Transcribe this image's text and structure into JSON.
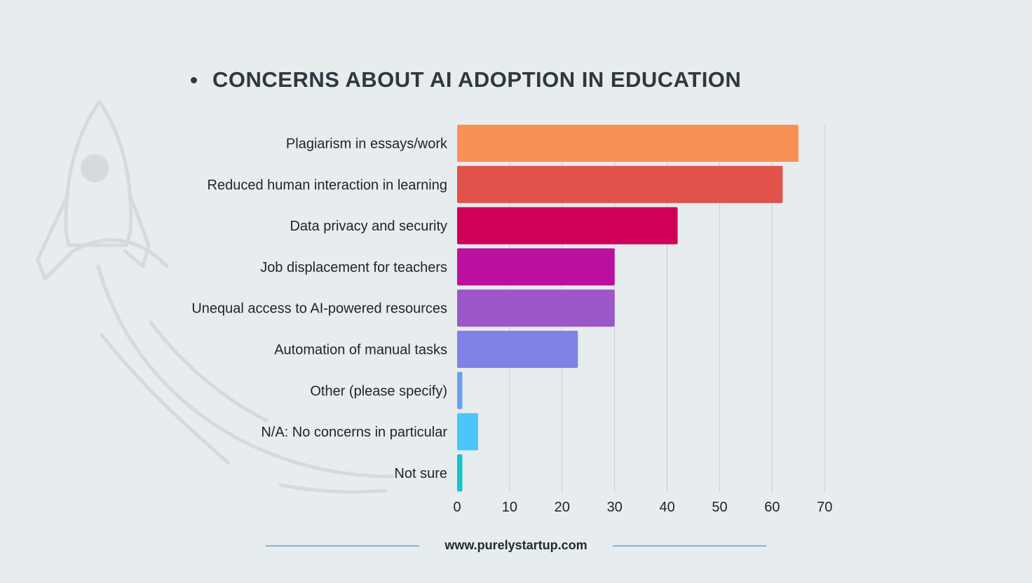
{
  "title": "CONCERNS ABOUT AI ADOPTION IN EDUCATION",
  "footer": {
    "url": "www.purelystartup.com"
  },
  "chart_data": {
    "type": "bar",
    "orientation": "horizontal",
    "title": "CONCERNS ABOUT AI ADOPTION IN EDUCATION",
    "categories": [
      "Plagiarism in essays/work",
      "Reduced human interaction in learning",
      "Data privacy and security",
      "Job displacement for teachers",
      "Unequal access to AI-powered resources",
      "Automation of manual tasks",
      "Other (please specify)",
      "N/A: No concerns in particular",
      "Not sure"
    ],
    "values": [
      65,
      62,
      42,
      30,
      30,
      23,
      1,
      4,
      1
    ],
    "colors": [
      "#f99155",
      "#e0524a",
      "#d0005a",
      "#bb109f",
      "#9b57c8",
      "#7f82e4",
      "#6f9ef0",
      "#4ac6fb",
      "#14c3cb"
    ],
    "xlim": [
      0,
      70
    ],
    "xticks": [
      "0",
      "10",
      "20",
      "30",
      "40",
      "50",
      "60",
      "70"
    ],
    "grid": true,
    "xlabel": "",
    "ylabel": ""
  }
}
